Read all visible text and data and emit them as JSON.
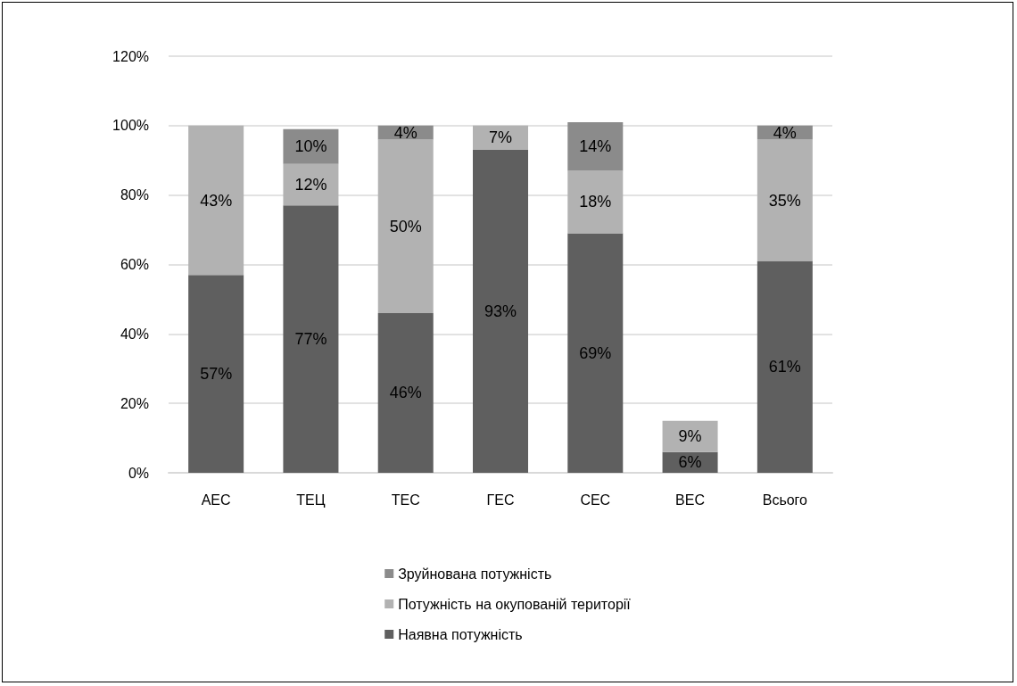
{
  "chart_data": {
    "type": "bar",
    "stacked": true,
    "categories": [
      "АЕС",
      "ТЕЦ",
      "ТЕС",
      "ГЕС",
      "СЕС",
      "ВЕС",
      "Всього"
    ],
    "series": [
      {
        "name": "Наявна потужність",
        "color": "#5f5f5f",
        "values": [
          57,
          77,
          46,
          93,
          69,
          6,
          61
        ],
        "value_labels": [
          "57%",
          "77%",
          "46%",
          "93%",
          "69%",
          "6%",
          "61%"
        ]
      },
      {
        "name": "Потужність на окупованій території",
        "color": "#b2b2b2",
        "values": [
          43,
          12,
          50,
          7,
          18,
          9,
          35
        ],
        "value_labels": [
          "43%",
          "12%",
          "50%",
          "7%",
          "18%",
          "9%",
          "35%"
        ]
      },
      {
        "name": "Зруйнована потужність",
        "color": "#8b8b8b",
        "values": [
          null,
          10,
          4,
          null,
          14,
          null,
          4
        ],
        "value_labels": [
          null,
          "10%",
          "4%",
          null,
          "14%",
          null,
          "4%"
        ]
      }
    ],
    "ylim": [
      0,
      120
    ],
    "yticks": [
      {
        "value": 0,
        "label": "0%"
      },
      {
        "value": 20,
        "label": "20%"
      },
      {
        "value": 40,
        "label": "40%"
      },
      {
        "value": 60,
        "label": "60%"
      },
      {
        "value": 80,
        "label": "80%"
      },
      {
        "value": 100,
        "label": "100%"
      },
      {
        "value": 120,
        "label": "120%"
      }
    ],
    "grid": "y",
    "legend": "bottom"
  }
}
